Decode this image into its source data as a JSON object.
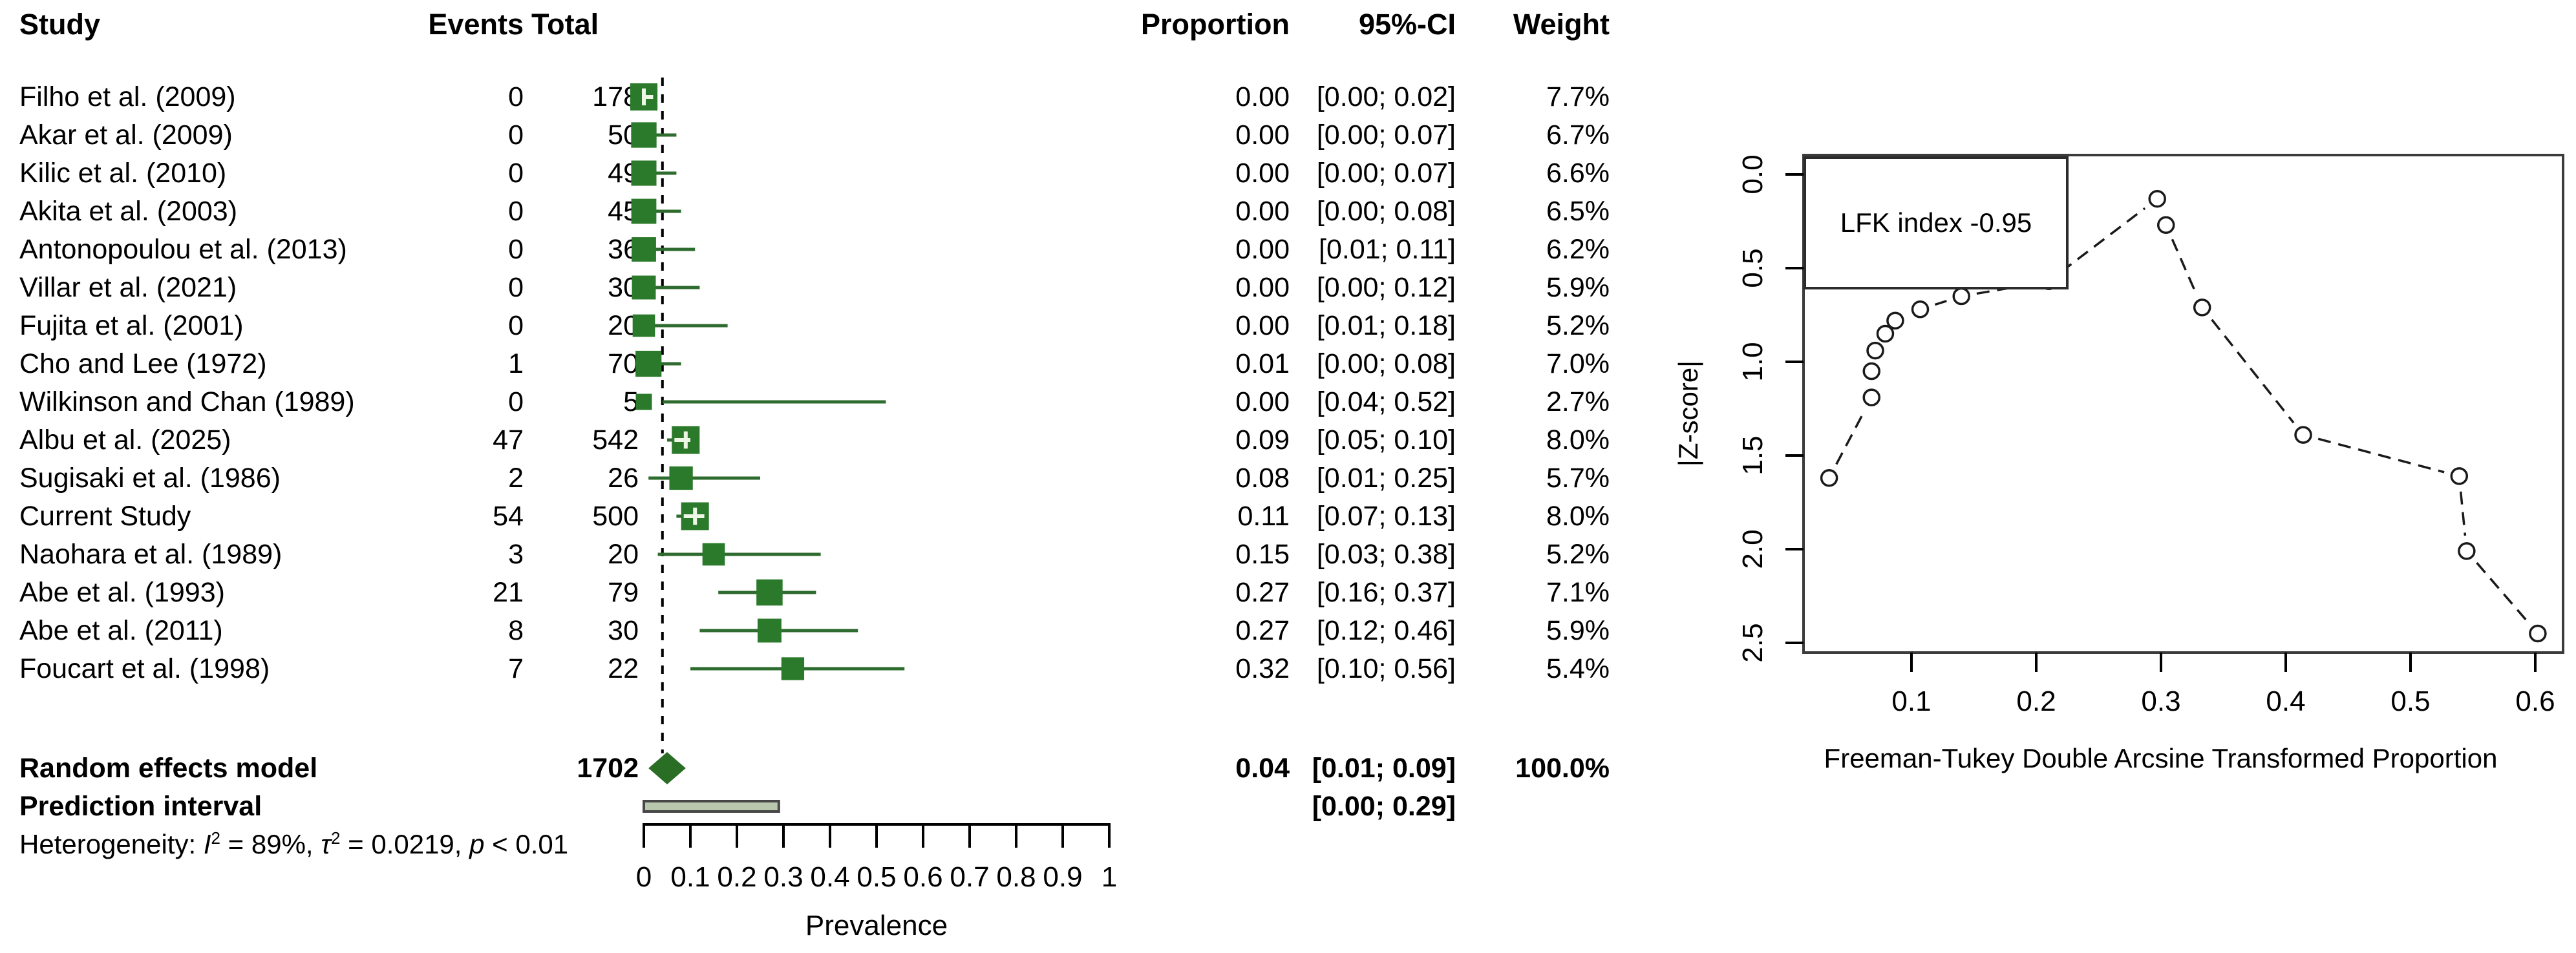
{
  "chart_data": [
    {
      "type": "forest",
      "columns": {
        "study": "Study",
        "events": "Events",
        "total": "Total",
        "proportion": "Proportion",
        "ci": "95%-CI",
        "weight": "Weight"
      },
      "studies": [
        {
          "name": "Filho et al. (2009)",
          "events": "0",
          "total": "178",
          "proportion": "0.00",
          "ci": "[0.00; 0.02]",
          "weight": "7.7%",
          "p": 0.0,
          "lo": 0.0,
          "hi": 0.02,
          "w": 7.7
        },
        {
          "name": "Akar et al. (2009)",
          "events": "0",
          "total": "50",
          "proportion": "0.00",
          "ci": "[0.00; 0.07]",
          "weight": "6.7%",
          "p": 0.0,
          "lo": 0.0,
          "hi": 0.07,
          "w": 6.7
        },
        {
          "name": "Kilic et al. (2010)",
          "events": "0",
          "total": "49",
          "proportion": "0.00",
          "ci": "[0.00; 0.07]",
          "weight": "6.6%",
          "p": 0.0,
          "lo": 0.0,
          "hi": 0.07,
          "w": 6.6
        },
        {
          "name": "Akita et al. (2003)",
          "events": "0",
          "total": "45",
          "proportion": "0.00",
          "ci": "[0.00; 0.08]",
          "weight": "6.5%",
          "p": 0.0,
          "lo": 0.0,
          "hi": 0.08,
          "w": 6.5
        },
        {
          "name": "Antonopoulou et al. (2013)",
          "events": "0",
          "total": "36",
          "proportion": "0.00",
          "ci": "[0.01; 0.11]",
          "weight": "6.2%",
          "p": 0.0,
          "lo": 0.01,
          "hi": 0.11,
          "w": 6.2
        },
        {
          "name": "Villar et al. (2021)",
          "events": "0",
          "total": "30",
          "proportion": "0.00",
          "ci": "[0.00; 0.12]",
          "weight": "5.9%",
          "p": 0.0,
          "lo": 0.0,
          "hi": 0.12,
          "w": 5.9
        },
        {
          "name": "Fujita et al. (2001)",
          "events": "0",
          "total": "20",
          "proportion": "0.00",
          "ci": "[0.01; 0.18]",
          "weight": "5.2%",
          "p": 0.0,
          "lo": 0.01,
          "hi": 0.18,
          "w": 5.2
        },
        {
          "name": "Cho and Lee (1972)",
          "events": "1",
          "total": "70",
          "proportion": "0.01",
          "ci": "[0.00; 0.08]",
          "weight": "7.0%",
          "p": 0.01,
          "lo": 0.0,
          "hi": 0.08,
          "w": 7.0
        },
        {
          "name": "Wilkinson and Chan (1989)",
          "events": "0",
          "total": "5",
          "proportion": "0.00",
          "ci": "[0.04; 0.52]",
          "weight": "2.7%",
          "p": 0.0,
          "lo": 0.04,
          "hi": 0.52,
          "w": 2.7
        },
        {
          "name": "Albu et al. (2025)",
          "events": "47",
          "total": "542",
          "proportion": "0.09",
          "ci": "[0.05; 0.10]",
          "weight": "8.0%",
          "p": 0.09,
          "lo": 0.05,
          "hi": 0.1,
          "w": 8.0
        },
        {
          "name": "Sugisaki et al. (1986)",
          "events": "2",
          "total": "26",
          "proportion": "0.08",
          "ci": "[0.01; 0.25]",
          "weight": "5.7%",
          "p": 0.08,
          "lo": 0.01,
          "hi": 0.25,
          "w": 5.7
        },
        {
          "name": "Current Study",
          "events": "54",
          "total": "500",
          "proportion": "0.11",
          "ci": "[0.07; 0.13]",
          "weight": "8.0%",
          "p": 0.11,
          "lo": 0.07,
          "hi": 0.13,
          "w": 8.0
        },
        {
          "name": "Naohara et al. (1989)",
          "events": "3",
          "total": "20",
          "proportion": "0.15",
          "ci": "[0.03; 0.38]",
          "weight": "5.2%",
          "p": 0.15,
          "lo": 0.03,
          "hi": 0.38,
          "w": 5.2
        },
        {
          "name": "Abe et al. (1993)",
          "events": "21",
          "total": "79",
          "proportion": "0.27",
          "ci": "[0.16; 0.37]",
          "weight": "7.1%",
          "p": 0.27,
          "lo": 0.16,
          "hi": 0.37,
          "w": 7.1
        },
        {
          "name": "Abe et al. (2011)",
          "events": "8",
          "total": "30",
          "proportion": "0.27",
          "ci": "[0.12; 0.46]",
          "weight": "5.9%",
          "p": 0.27,
          "lo": 0.12,
          "hi": 0.46,
          "w": 5.9
        },
        {
          "name": "Foucart et al. (1998)",
          "events": "7",
          "total": "22",
          "proportion": "0.32",
          "ci": "[0.10; 0.56]",
          "weight": "5.4%",
          "p": 0.32,
          "lo": 0.1,
          "hi": 0.56,
          "w": 5.4
        }
      ],
      "summary": {
        "name": "Random effects model",
        "total": "1702",
        "proportion": "0.04",
        "ci": "[0.01; 0.09]",
        "weight": "100.0%",
        "p": 0.04,
        "lo": 0.01,
        "hi": 0.09
      },
      "prediction": {
        "name": "Prediction interval",
        "ci": "[0.00; 0.29]",
        "lo": 0.0,
        "hi": 0.29
      },
      "heterogeneity": [
        {
          "t": "Heterogeneity: "
        },
        {
          "t": "I",
          "i": 1
        },
        {
          "t": "2",
          "sup": 1
        },
        {
          "t": " = 89%, "
        },
        {
          "t": "τ",
          "i": 1
        },
        {
          "t": "2",
          "sup": 1
        },
        {
          "t": " = 0.0219, "
        },
        {
          "t": "p",
          "i": 1
        },
        {
          "t": " < 0.01"
        }
      ],
      "axis": {
        "ticks": [
          0,
          0.1,
          0.2,
          0.3,
          0.4,
          0.5,
          0.6,
          0.7,
          0.8,
          0.9,
          1
        ],
        "tick_labels": [
          "0",
          "0.1",
          "0.2",
          "0.3",
          "0.4",
          "0.5",
          "0.6",
          "0.7",
          "0.8",
          "0.9",
          "1"
        ],
        "xlabel": "Prevalence",
        "xlim": [
          0,
          1
        ]
      },
      "colors": {
        "square": "#2b7a2b",
        "whisker": "#2e6b2e",
        "diamond": "#2a6d24",
        "inside_line": "#edf7e6",
        "prediction_fill": "#b9c7ad",
        "prediction_stroke": "#474747",
        "dashed_line": "#000000"
      }
    },
    {
      "type": "scatter",
      "name": "doi-plot",
      "lfk_label": "LFK index -0.95",
      "ylabel": "|Z-score|",
      "xlabel": "Freeman-Tukey Double Arcsine Transformed Proportion",
      "ytick_labels": [
        "0.0",
        "0.5",
        "1.0",
        "1.5",
        "2.0",
        "2.5"
      ],
      "xtick_labels": [
        "0.1",
        "0.2",
        "0.3",
        "0.4",
        "0.5",
        "0.6"
      ],
      "ylim_top_to_bottom": [
        0.0,
        2.5
      ],
      "xlim": [
        0.013,
        0.622
      ],
      "x": [
        0.034,
        0.068,
        0.068,
        0.071,
        0.079,
        0.087,
        0.107,
        0.14,
        0.21,
        0.297,
        0.304,
        0.333,
        0.414,
        0.539,
        0.545,
        0.602
      ],
      "z": [
        1.62,
        1.19,
        1.05,
        0.94,
        0.85,
        0.78,
        0.72,
        0.65,
        0.57,
        0.13,
        0.27,
        0.71,
        1.39,
        1.61,
        2.01,
        2.45
      ]
    }
  ]
}
